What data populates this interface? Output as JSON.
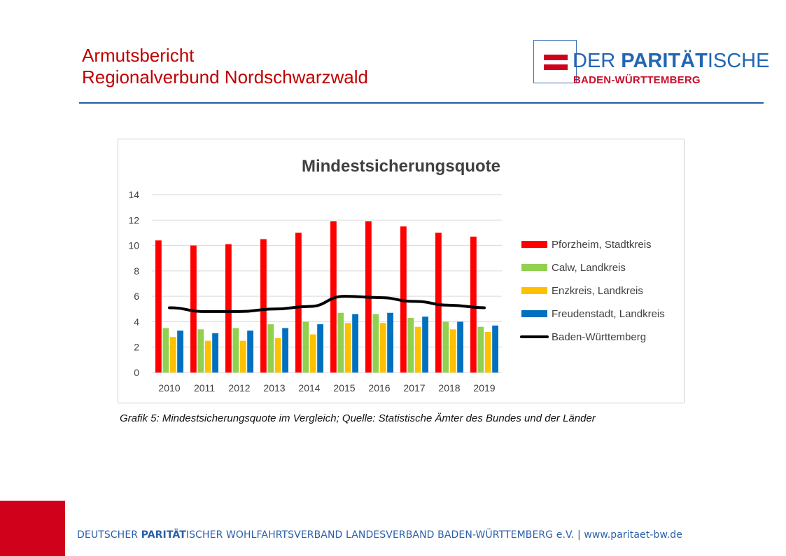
{
  "header": {
    "title_line1": "Armutsbericht",
    "title_line2": "Regionalverbund  Nordschwarzwald"
  },
  "logo": {
    "word_prefix": "DER ",
    "word_strong": "PARITÄT",
    "word_suffix": "ISCHE",
    "subline": "BADEN-WÜRTTEMBERG",
    "colors": {
      "red": "#d0021b",
      "blue": "#2266b3"
    }
  },
  "caption": "Grafik 5: Mindestsicherungsquote im Vergleich; Quelle: Statistische Ämter des Bundes und der Länder",
  "footer": {
    "prefix": "DEUTSCHER ",
    "strong": "PARITÄT",
    "suffix": "ISCHER WOHLFAHRTSVERBAND LANDESVERBAND BADEN-WÜRTTEMBERG e.V. | www.paritaet-bw.de"
  },
  "chart_data": {
    "type": "bar",
    "title": "Mindestsicherungsquote",
    "xlabel": "",
    "ylabel": "",
    "ylim": [
      0,
      14
    ],
    "yticks": [
      0,
      2,
      4,
      6,
      8,
      10,
      12,
      14
    ],
    "grid": true,
    "legend_position": "right",
    "categories": [
      "2010",
      "2011",
      "2012",
      "2013",
      "2014",
      "2015",
      "2016",
      "2017",
      "2018",
      "2019"
    ],
    "series": [
      {
        "name": "Pforzheim, Stadtkreis",
        "kind": "bar",
        "color": "#ff0000",
        "values": [
          10.4,
          10.0,
          10.1,
          10.5,
          11.0,
          11.9,
          11.9,
          11.5,
          11.0,
          10.7
        ]
      },
      {
        "name": "Calw, Landkreis",
        "kind": "bar",
        "color": "#92d050",
        "values": [
          3.5,
          3.4,
          3.5,
          3.8,
          4.0,
          4.7,
          4.6,
          4.3,
          4.0,
          3.6
        ]
      },
      {
        "name": "Enzkreis, Landkreis",
        "kind": "bar",
        "color": "#ffc000",
        "values": [
          2.8,
          2.5,
          2.5,
          2.7,
          3.0,
          3.9,
          3.9,
          3.6,
          3.4,
          3.2
        ]
      },
      {
        "name": "Freudenstadt, Landkreis",
        "kind": "bar",
        "color": "#0070c0",
        "values": [
          3.3,
          3.1,
          3.3,
          3.5,
          3.8,
          4.6,
          4.7,
          4.4,
          4.0,
          3.7
        ]
      },
      {
        "name": "Baden-Württemberg",
        "kind": "line",
        "color": "#000000",
        "values": [
          5.1,
          4.8,
          4.8,
          5.0,
          5.2,
          6.0,
          5.9,
          5.6,
          5.3,
          5.1
        ]
      }
    ]
  }
}
